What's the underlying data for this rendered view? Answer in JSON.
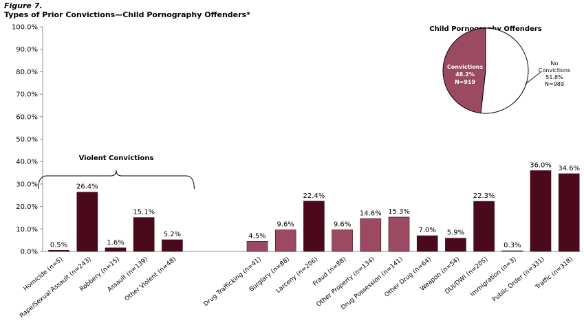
{
  "figure_label": "Figure 7.",
  "figure_title": "Types of Prior Convictions—Child Pornography Offenders*",
  "bracket_label": "Violent Convictions",
  "colors": {
    "dark": "#4a0a1c",
    "light": "#9b4a62",
    "axis": "#8c8c8c",
    "grid": "#d9d9d9"
  },
  "chart_data": [
    {
      "type": "bar",
      "title": "Types of Prior Convictions—Child Pornography Offenders*",
      "ylim": [
        0,
        100
      ],
      "y_ticks": [
        "0.0%",
        "10.0%",
        "20.0%",
        "30.0%",
        "40.0%",
        "50.0%",
        "60.0%",
        "70.0%",
        "80.0%",
        "90.0%",
        "100.0%"
      ],
      "grid": false,
      "categories": [
        "Homicide (n=5)",
        "Rape/Sexual Assault (n=243)",
        "Robbery (n=15)",
        "Assault (n=139)",
        "Other Violent (n=48)",
        "Drug Trafficking (n=41)",
        "Burglary (n=88)",
        "Larceny (n=206)",
        "Fraud (n=88)",
        "Other Property (n=134)",
        "Drug Possession (n=141)",
        "Other Drug (n=64)",
        "Weapon (n=54)",
        "DUI/DWI (n=205)",
        "Immigration (n=3)",
        "Public Order (n=331)",
        "Traffic (n=318)"
      ],
      "values": [
        0.5,
        26.4,
        1.6,
        15.1,
        5.2,
        4.5,
        9.6,
        22.4,
        9.6,
        14.6,
        15.3,
        7.0,
        5.9,
        22.3,
        0.3,
        36.0,
        34.6
      ],
      "value_labels": [
        "0.5%",
        "26.4%",
        "1.6%",
        "15.1%",
        "5.2%",
        "4.5%",
        "9.6%",
        "22.4%",
        "9.6%",
        "14.6%",
        "15.3%",
        "7.0%",
        "5.9%",
        "22.3%",
        "0.3%",
        "36.0%",
        "34.6%"
      ],
      "bar_colors": [
        "dark",
        "dark",
        "dark",
        "dark",
        "dark",
        "light",
        "light",
        "dark",
        "light",
        "light",
        "light",
        "dark",
        "dark",
        "dark",
        "light",
        "dark",
        "dark"
      ]
    },
    {
      "type": "pie",
      "title": "Child Pornography Offenders",
      "slices": [
        {
          "label": "Convictions",
          "percent": 48.2,
          "percent_label": "48.2%",
          "n_label": "N=919",
          "color": "#9b4a62"
        },
        {
          "label": "No Convictions",
          "percent": 51.8,
          "percent_label": "51.8%",
          "n_label": "N=989",
          "color": "#ffffff"
        }
      ]
    }
  ]
}
